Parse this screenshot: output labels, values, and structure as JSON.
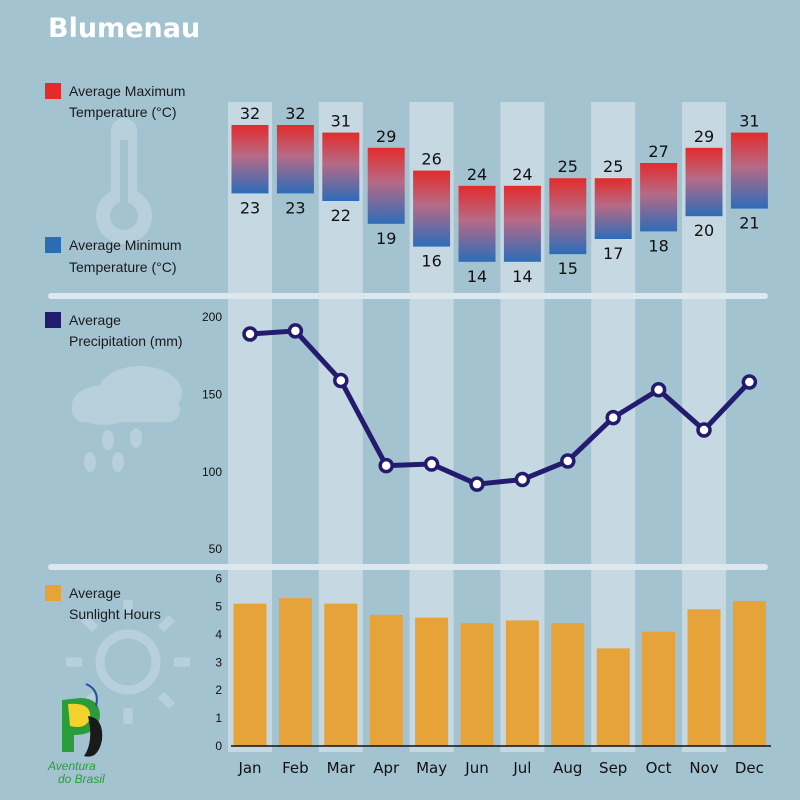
{
  "title": "Blumenau",
  "legends": {
    "temp_max": [
      "Average Maximum",
      "Temperature (°C)"
    ],
    "temp_min": [
      "Average Minimum",
      "Temperature (°C)"
    ],
    "precip": [
      "Average",
      "Precipitation (mm)"
    ],
    "sun": [
      "Average",
      "Sunlight Hours"
    ]
  },
  "logo": {
    "line1": "Aventura",
    "line2": "do Brasil"
  },
  "colors": {
    "background": "#a4c3d1",
    "column_band": "#c6d9e2",
    "separator": "#dde8ee",
    "temp_top": "#e32b2b",
    "temp_bottom": "#2d6cb8",
    "precip_line": "#231c6e",
    "sun_bar": "#e6a33a",
    "decor_icon": "#b7d0db"
  },
  "icons": [
    "thermometer-icon",
    "rain-cloud-icon",
    "sun-icon",
    "aventura-do-brasil-logo"
  ],
  "chart_data": [
    {
      "type": "bar",
      "title": "",
      "categories": [
        "Jan",
        "Feb",
        "Mar",
        "Apr",
        "May",
        "Jun",
        "Jul",
        "Aug",
        "Sep",
        "Oct",
        "Nov",
        "Dec"
      ],
      "series": [
        {
          "name": "Average Maximum Temperature (°C)",
          "values": [
            32,
            32,
            31,
            29,
            26,
            24,
            24,
            25,
            25,
            27,
            29,
            31
          ]
        },
        {
          "name": "Average Minimum Temperature (°C)",
          "values": [
            23,
            23,
            22,
            19,
            16,
            14,
            14,
            15,
            17,
            18,
            20,
            21
          ]
        }
      ],
      "value_labels": true
    },
    {
      "type": "line",
      "categories": [
        "Jan",
        "Feb",
        "Mar",
        "Apr",
        "May",
        "Jun",
        "Jul",
        "Aug",
        "Sep",
        "Oct",
        "Nov",
        "Dec"
      ],
      "series": [
        {
          "name": "Average Precipitation (mm)",
          "values": [
            189,
            191,
            159,
            104,
            105,
            92,
            95,
            107,
            135,
            153,
            127,
            158
          ]
        }
      ],
      "yticks": [
        50,
        100,
        150,
        200
      ],
      "ylim": [
        45,
        210
      ]
    },
    {
      "type": "bar",
      "categories": [
        "Jan",
        "Feb",
        "Mar",
        "Apr",
        "May",
        "Jun",
        "Jul",
        "Aug",
        "Sep",
        "Oct",
        "Nov",
        "Dec"
      ],
      "series": [
        {
          "name": "Average Sunlight Hours",
          "values": [
            5.1,
            5.3,
            5.1,
            4.7,
            4.6,
            4.4,
            4.5,
            4.4,
            3.5,
            4.1,
            4.9,
            5.2
          ]
        }
      ],
      "yticks": [
        0,
        1,
        2,
        3,
        4,
        5,
        6
      ],
      "ylim": [
        0,
        6
      ]
    }
  ]
}
